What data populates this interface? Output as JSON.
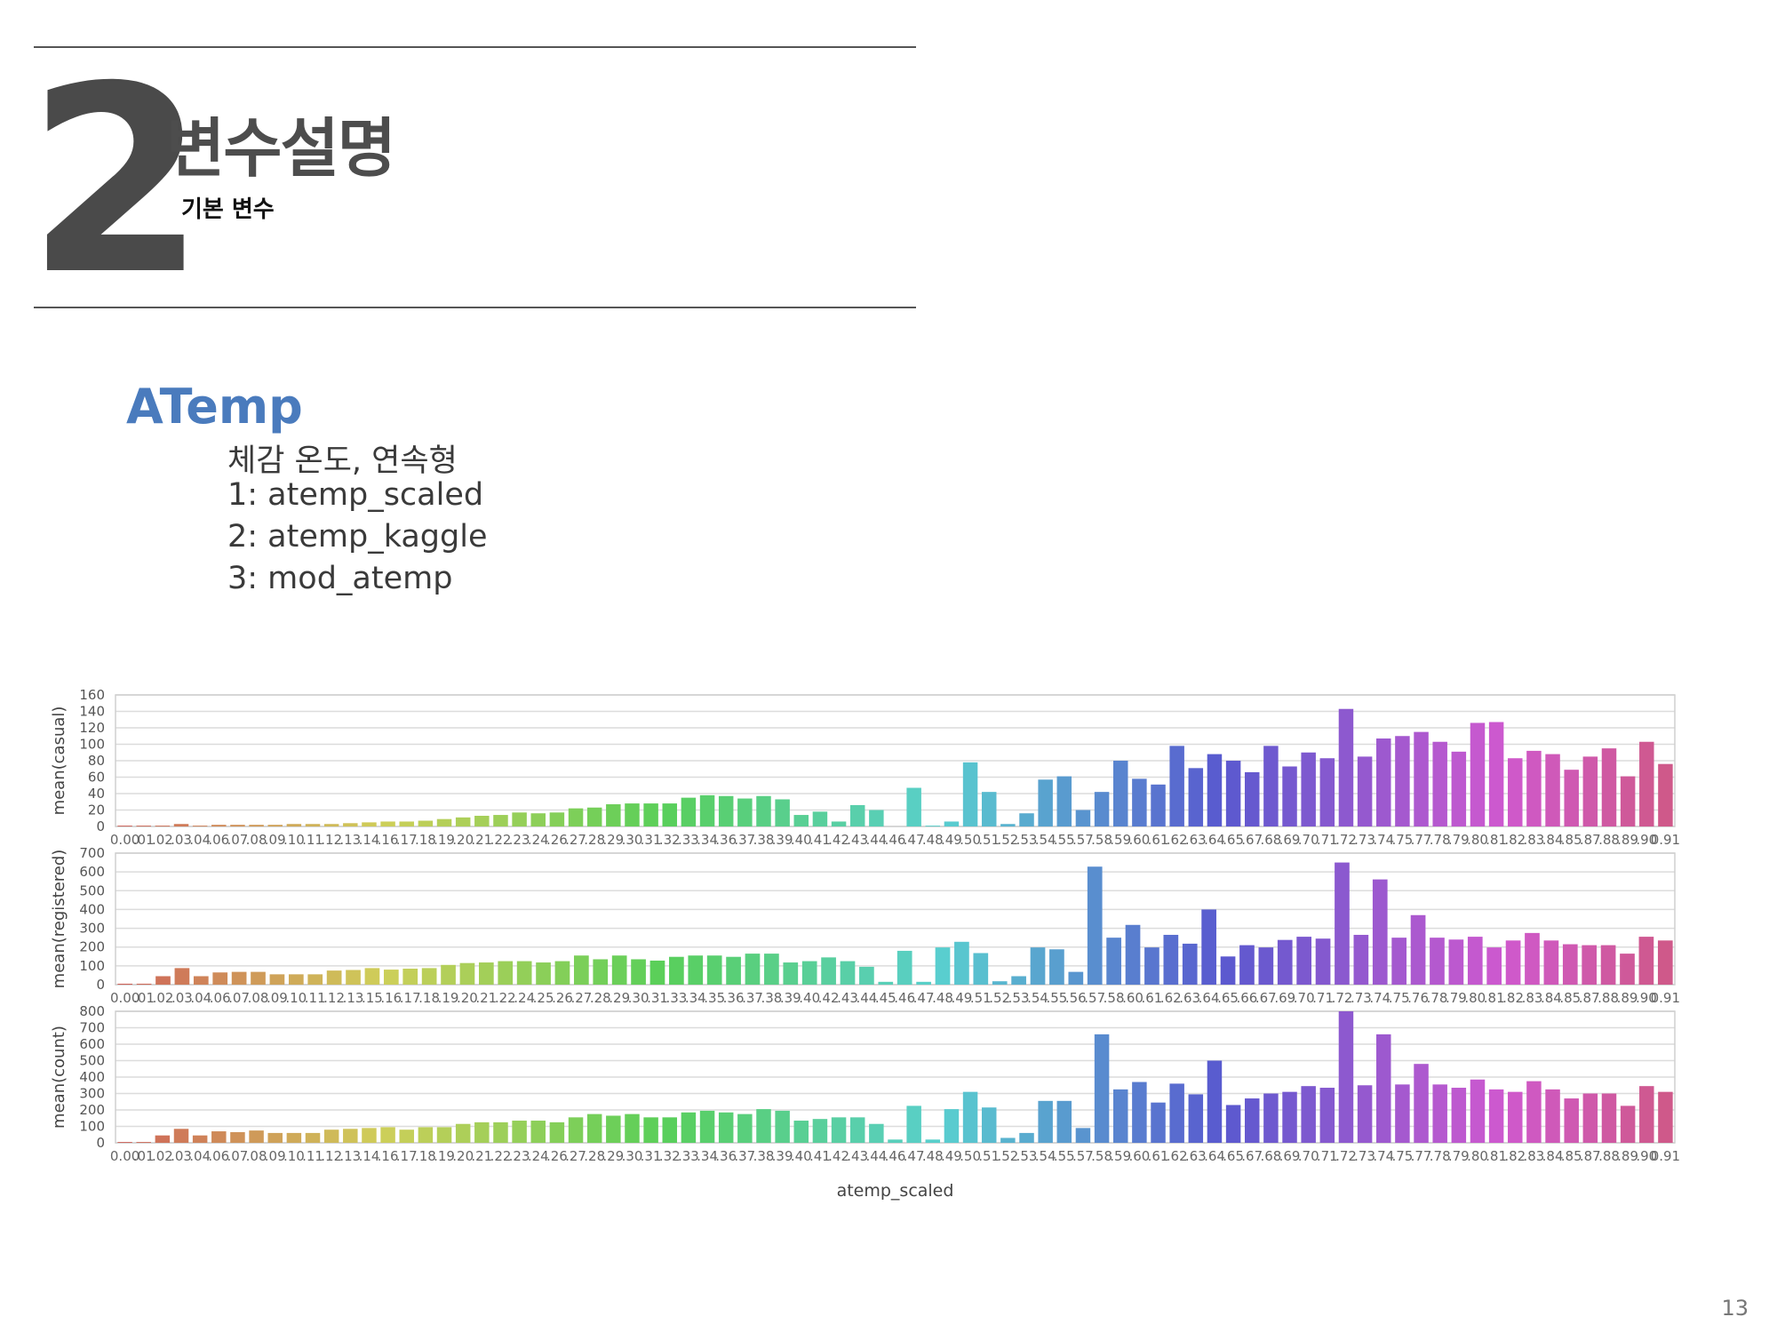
{
  "section": {
    "number": "2",
    "title": "변수설명",
    "subtitle": "기본 변수"
  },
  "variable": {
    "name": "ATemp",
    "lines": [
      "체감 온도, 연속형",
      "1: atemp_scaled",
      "2: atemp_kaggle",
      "3: mod_atemp"
    ]
  },
  "page_number": "13",
  "chart_data": [
    {
      "type": "bar",
      "ylabel": "mean(casual)",
      "xlabel": "",
      "ylim": [
        0,
        160
      ],
      "yticks": [
        0,
        20,
        40,
        60,
        80,
        100,
        120,
        140,
        160
      ],
      "x_range": [
        0.0,
        0.91
      ],
      "grid": true,
      "values": [
        1,
        1,
        1,
        3,
        1,
        2,
        2,
        2,
        2,
        3,
        3,
        3,
        4,
        5,
        6,
        6,
        7,
        9,
        11,
        13,
        14,
        17,
        16,
        17,
        22,
        23,
        27,
        28,
        28,
        28,
        35,
        38,
        37,
        34,
        37,
        33,
        14,
        18,
        6,
        26,
        20,
        0,
        47,
        1,
        6,
        78,
        42,
        3,
        16,
        57,
        61,
        20,
        42,
        80,
        58,
        51,
        98,
        71,
        88,
        80,
        66,
        98,
        73,
        90,
        83,
        143,
        85,
        107,
        110,
        115,
        103,
        91,
        126,
        127,
        83,
        92,
        88,
        69,
        85,
        95,
        61,
        103,
        76
      ]
    },
    {
      "type": "bar",
      "ylabel": "mean(registered)",
      "xlabel": "",
      "ylim": [
        0,
        700
      ],
      "yticks": [
        0,
        100,
        200,
        300,
        400,
        500,
        600,
        700
      ],
      "x_range": [
        0.0,
        0.91
      ],
      "grid": true,
      "values": [
        5,
        5,
        45,
        88,
        45,
        65,
        68,
        68,
        55,
        55,
        55,
        75,
        78,
        88,
        80,
        85,
        88,
        105,
        115,
        118,
        125,
        125,
        118,
        125,
        155,
        135,
        155,
        135,
        128,
        148,
        155,
        155,
        148,
        165,
        165,
        118,
        125,
        145,
        125,
        95,
        15,
        180,
        15,
        198,
        228,
        168,
        18,
        45,
        198,
        188,
        68,
        628,
        250,
        318,
        198,
        265,
        218,
        400,
        150,
        210,
        198,
        238,
        255,
        245,
        650,
        265,
        560,
        250,
        370,
        250,
        240,
        255,
        198,
        235,
        275,
        235,
        215,
        210,
        210,
        165,
        255,
        235
      ]
    },
    {
      "type": "bar",
      "ylabel": "mean(count)",
      "xlabel": "atemp_scaled",
      "ylim": [
        0,
        800
      ],
      "yticks": [
        0,
        100,
        200,
        300,
        400,
        500,
        600,
        700,
        800
      ],
      "x_range": [
        0.0,
        0.91
      ],
      "grid": true,
      "values": [
        5,
        5,
        45,
        85,
        45,
        70,
        65,
        75,
        60,
        60,
        60,
        80,
        85,
        90,
        95,
        80,
        95,
        95,
        115,
        125,
        125,
        135,
        135,
        125,
        155,
        175,
        165,
        175,
        155,
        155,
        185,
        195,
        185,
        175,
        205,
        195,
        135,
        145,
        155,
        155,
        115,
        20,
        225,
        20,
        205,
        310,
        215,
        30,
        60,
        255,
        255,
        90,
        660,
        325,
        370,
        245,
        360,
        295,
        500,
        230,
        270,
        300,
        310,
        345,
        335,
        800,
        350,
        660,
        355,
        480,
        355,
        335,
        385,
        325,
        310,
        375,
        325,
        270,
        300,
        300,
        225,
        345,
        310
      ]
    }
  ]
}
